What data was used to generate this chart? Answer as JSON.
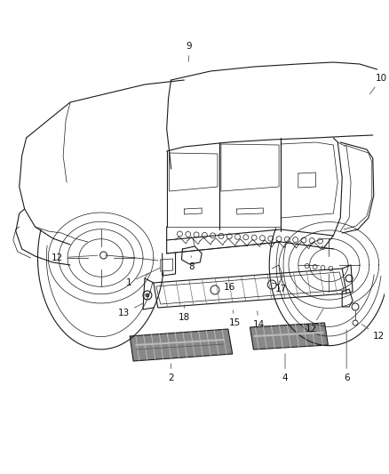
{
  "bg_color": "#ffffff",
  "line_color": "#1a1a1a",
  "figure_width": 4.38,
  "figure_height": 5.33,
  "dpi": 100,
  "label_fontsize": 7.5,
  "label_color": "#111111"
}
